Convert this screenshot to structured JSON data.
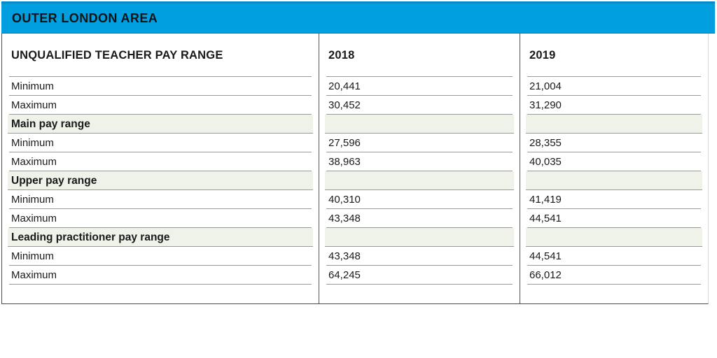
{
  "title": "OUTER LONDON AREA",
  "table": {
    "header": {
      "label": "UNQUALIFIED TEACHER PAY RANGE",
      "col_2018": "2018",
      "col_2019": "2019"
    },
    "rows": [
      {
        "type": "data",
        "label": "Minimum",
        "v2018": "20,441",
        "v2019": "21,004"
      },
      {
        "type": "data",
        "label": "Maximum",
        "v2018": "30,452",
        "v2019": "31,290"
      },
      {
        "type": "section",
        "label": "Main pay range",
        "v2018": "",
        "v2019": ""
      },
      {
        "type": "data",
        "label": "Minimum",
        "v2018": "27,596",
        "v2019": "28,355"
      },
      {
        "type": "data",
        "label": "Maximum",
        "v2018": "38,963",
        "v2019": "40,035"
      },
      {
        "type": "section",
        "label": "Upper pay range",
        "v2018": "",
        "v2019": ""
      },
      {
        "type": "data",
        "label": "Minimum",
        "v2018": "40,310",
        "v2019": "41,419"
      },
      {
        "type": "data",
        "label": "Maximum",
        "v2018": "43,348",
        "v2019": "44,541"
      },
      {
        "type": "section",
        "label": "Leading practitioner pay range",
        "v2018": "",
        "v2019": ""
      },
      {
        "type": "data",
        "label": "Minimum",
        "v2018": "43,348",
        "v2019": "44,541"
      },
      {
        "type": "data",
        "label": "Maximum",
        "v2018": "64,245",
        "v2019": "66,012"
      },
      {
        "type": "empty",
        "label": "",
        "v2018": "",
        "v2019": ""
      }
    ]
  },
  "colors": {
    "accent_blue": "#019fe0",
    "accent_blue_dark": "#0489c9",
    "section_green": "#eef2e9",
    "outer_border": "#4c4c4c",
    "row_separator": "#9a9a9a",
    "text": "#1a1a1a"
  },
  "chart_data": {
    "type": "table",
    "title": "OUTER LONDON AREA",
    "columns": [
      "UNQUALIFIED TEACHER PAY RANGE",
      "2018",
      "2019"
    ],
    "sections": [
      {
        "name": "Unqualified teacher pay range",
        "minimum": {
          "2018": 20441,
          "2019": 21004
        },
        "maximum": {
          "2018": 30452,
          "2019": 31290
        }
      },
      {
        "name": "Main pay range",
        "minimum": {
          "2018": 27596,
          "2019": 28355
        },
        "maximum": {
          "2018": 38963,
          "2019": 40035
        }
      },
      {
        "name": "Upper pay range",
        "minimum": {
          "2018": 40310,
          "2019": 41419
        },
        "maximum": {
          "2018": 43348,
          "2019": 44541
        }
      },
      {
        "name": "Leading practitioner pay range",
        "minimum": {
          "2018": 43348,
          "2019": 44541
        },
        "maximum": {
          "2018": 64245,
          "2019": 66012
        }
      }
    ]
  }
}
